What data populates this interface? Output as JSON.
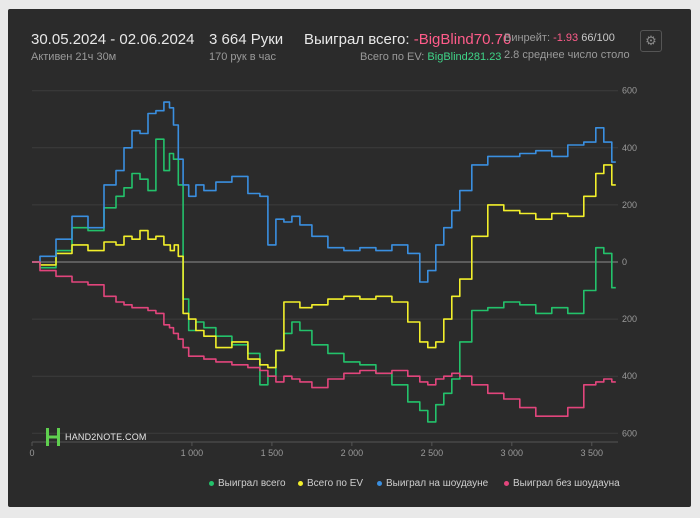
{
  "header": {
    "date_range": "30.05.2024 - 02.06.2024",
    "active": "Активен 21ч 30м",
    "hands": "3 664 Руки",
    "hands_per_hour": "170 рук в час",
    "won_total_label": "Выиграл всего:",
    "won_total_value": "-BigBlind70.70",
    "ev_label": "Всего по EV:",
    "ev_value": "BigBlind281.23",
    "winrate_label": "Винрейт:",
    "winrate_value": "-1.93",
    "winrate_suffix": "66/100",
    "avg_players": "2.8 среднее число столо"
  },
  "logo": {
    "text": "HAND2NOTE.COM"
  },
  "colors": {
    "green": "#23c26b",
    "yellow": "#f2ef2b",
    "blue": "#3a8fe0",
    "pink": "#e2457c"
  },
  "chart_data": {
    "type": "line",
    "xlabel": "",
    "ylabel": "",
    "xlim": [
      0,
      3664
    ],
    "ylim": [
      -620,
      620
    ],
    "x_ticks": [
      0,
      1000,
      1500,
      2000,
      2500,
      3000,
      3500
    ],
    "x_tick_labels": [
      "0",
      "1 000",
      "1 500",
      "2 000",
      "2 500",
      "3 000",
      "3 500"
    ],
    "y_ticks": [
      600,
      400,
      200,
      0,
      -200,
      -400,
      -600
    ],
    "y_tick_labels": [
      "600",
      "400",
      "200",
      "0",
      "200",
      "400",
      "600"
    ],
    "grid": true,
    "legend_position": "bottom-right",
    "series": [
      {
        "name": "Выиграл всего",
        "color": "green",
        "x": [
          0,
          100,
          200,
          300,
          400,
          500,
          550,
          600,
          650,
          700,
          750,
          800,
          850,
          870,
          900,
          930,
          960,
          1000,
          1050,
          1100,
          1200,
          1300,
          1400,
          1450,
          1500,
          1550,
          1600,
          1650,
          1700,
          1800,
          1900,
          2000,
          2100,
          2200,
          2300,
          2400,
          2450,
          2500,
          2550,
          2600,
          2650,
          2700,
          2800,
          2900,
          3000,
          3100,
          3200,
          3300,
          3400,
          3500,
          3550,
          3600,
          3650
        ],
        "y": [
          0,
          -20,
          40,
          120,
          110,
          190,
          230,
          260,
          310,
          290,
          250,
          430,
          320,
          380,
          360,
          270,
          -130,
          -240,
          -210,
          -230,
          -260,
          -290,
          -320,
          -430,
          -400,
          -310,
          -250,
          -210,
          -240,
          -290,
          -320,
          -350,
          -360,
          -390,
          -430,
          -490,
          -520,
          -560,
          -500,
          -460,
          -410,
          -280,
          -170,
          -160,
          -140,
          -150,
          -180,
          -160,
          -180,
          -100,
          50,
          30,
          -90
        ]
      },
      {
        "name": "Всего по EV",
        "color": "yellow",
        "x": [
          0,
          100,
          200,
          300,
          400,
          500,
          550,
          600,
          650,
          700,
          750,
          800,
          850,
          880,
          900,
          930,
          960,
          1000,
          1050,
          1100,
          1200,
          1300,
          1400,
          1450,
          1500,
          1550,
          1600,
          1650,
          1700,
          1800,
          1900,
          2000,
          2100,
          2200,
          2300,
          2400,
          2450,
          2500,
          2550,
          2600,
          2650,
          2700,
          2800,
          2900,
          3000,
          3100,
          3200,
          3300,
          3400,
          3500,
          3550,
          3600,
          3650
        ],
        "y": [
          0,
          -10,
          30,
          60,
          40,
          70,
          60,
          90,
          80,
          110,
          80,
          90,
          60,
          40,
          60,
          20,
          -180,
          -200,
          -240,
          -260,
          -300,
          -280,
          -340,
          -360,
          -370,
          -310,
          -140,
          -140,
          -160,
          -150,
          -130,
          -120,
          -130,
          -120,
          -140,
          -210,
          -280,
          -300,
          -280,
          -200,
          -120,
          -60,
          90,
          200,
          180,
          170,
          150,
          170,
          160,
          230,
          310,
          340,
          270
        ]
      },
      {
        "name": "Выиграл на шоудауне",
        "color": "blue",
        "x": [
          0,
          100,
          200,
          300,
          400,
          500,
          550,
          600,
          650,
          700,
          750,
          800,
          850,
          870,
          900,
          930,
          960,
          1000,
          1050,
          1100,
          1200,
          1300,
          1400,
          1450,
          1500,
          1550,
          1600,
          1650,
          1700,
          1800,
          1900,
          2000,
          2100,
          2200,
          2300,
          2400,
          2450,
          2500,
          2550,
          2600,
          2650,
          2700,
          2800,
          2900,
          3000,
          3100,
          3200,
          3300,
          3400,
          3500,
          3550,
          3600,
          3650
        ],
        "y": [
          0,
          20,
          80,
          160,
          120,
          270,
          320,
          400,
          460,
          450,
          520,
          530,
          560,
          540,
          480,
          360,
          270,
          230,
          270,
          250,
          280,
          300,
          240,
          230,
          60,
          150,
          140,
          160,
          130,
          90,
          50,
          40,
          50,
          40,
          60,
          30,
          -70,
          -30,
          60,
          120,
          180,
          250,
          340,
          370,
          370,
          380,
          390,
          370,
          410,
          420,
          470,
          420,
          350
        ]
      },
      {
        "name": "Выиграл без шоудауна",
        "color": "pink",
        "x": [
          0,
          100,
          200,
          300,
          400,
          500,
          550,
          600,
          650,
          700,
          750,
          800,
          850,
          870,
          900,
          930,
          960,
          1000,
          1050,
          1100,
          1200,
          1300,
          1400,
          1450,
          1500,
          1550,
          1600,
          1650,
          1700,
          1800,
          1900,
          2000,
          2100,
          2200,
          2300,
          2400,
          2450,
          2500,
          2550,
          2600,
          2650,
          2700,
          2800,
          2900,
          3000,
          3100,
          3200,
          3300,
          3400,
          3500,
          3550,
          3600,
          3650
        ],
        "y": [
          0,
          -30,
          -50,
          -70,
          -80,
          -120,
          -140,
          -150,
          -160,
          -160,
          -170,
          -180,
          -220,
          -230,
          -250,
          -270,
          -300,
          -330,
          -330,
          -340,
          -350,
          -360,
          -370,
          -380,
          -400,
          -420,
          -400,
          -410,
          -420,
          -440,
          -410,
          -390,
          -380,
          -390,
          -380,
          -400,
          -420,
          -430,
          -410,
          -400,
          -390,
          -400,
          -430,
          -460,
          -480,
          -510,
          -540,
          -540,
          -510,
          -430,
          -420,
          -410,
          -420
        ]
      }
    ]
  }
}
